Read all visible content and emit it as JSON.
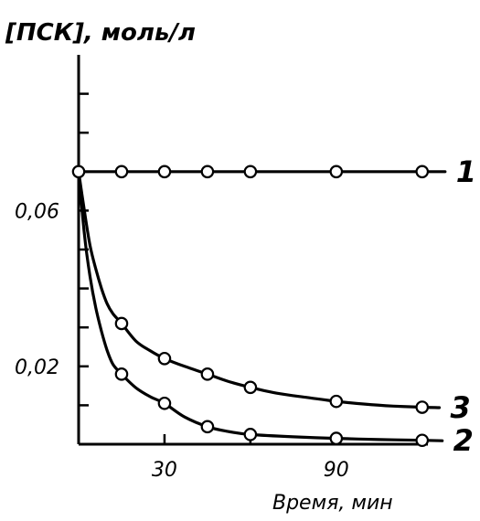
{
  "chart_data": {
    "type": "line",
    "ylabel": "[ПСК], моль/л",
    "xlabel": "Время, мин",
    "xlim": [
      0,
      122
    ],
    "ylim": [
      0,
      0.1
    ],
    "x_ticks": [
      {
        "value": 30,
        "label": "30"
      },
      {
        "value": 90,
        "label": "90"
      }
    ],
    "y_ticks": [
      {
        "value": 0.02,
        "label": "0,02"
      },
      {
        "value": 0.06,
        "label": "0,06"
      }
    ],
    "y_minor_ticks": [
      0.01,
      0.03,
      0.04,
      0.05,
      0.07,
      0.08,
      0.09
    ],
    "x_minor_ticks": [
      60,
      120
    ],
    "grid": false,
    "series": [
      {
        "name": "1",
        "label": "1",
        "x": [
          0,
          15,
          30,
          45,
          60,
          90,
          120
        ],
        "y": [
          0.07,
          0.07,
          0.07,
          0.07,
          0.07,
          0.07,
          0.07
        ],
        "curve": [
          [
            0,
            0.07
          ],
          [
            30,
            0.07
          ],
          [
            60,
            0.07
          ],
          [
            90,
            0.07
          ],
          [
            120,
            0.07
          ],
          [
            128,
            0.07
          ]
        ]
      },
      {
        "name": "3",
        "label": "3",
        "x": [
          15,
          30,
          45,
          60,
          90,
          120
        ],
        "y": [
          0.031,
          0.022,
          0.018,
          0.0146,
          0.011,
          0.0095
        ],
        "curve": [
          [
            0,
            0.07
          ],
          [
            2,
            0.06
          ],
          [
            4,
            0.051
          ],
          [
            6,
            0.045
          ],
          [
            8,
            0.04
          ],
          [
            10,
            0.036
          ],
          [
            12,
            0.0335
          ],
          [
            15,
            0.031
          ],
          [
            20,
            0.0265
          ],
          [
            25,
            0.024
          ],
          [
            30,
            0.022
          ],
          [
            37,
            0.02
          ],
          [
            45,
            0.018
          ],
          [
            52,
            0.0162
          ],
          [
            60,
            0.0146
          ],
          [
            70,
            0.013
          ],
          [
            80,
            0.012
          ],
          [
            90,
            0.011
          ],
          [
            100,
            0.0103
          ],
          [
            110,
            0.0098
          ],
          [
            120,
            0.0095
          ],
          [
            126,
            0.0094
          ]
        ]
      },
      {
        "name": "2",
        "label": "2",
        "x": [
          15,
          30,
          45,
          60,
          90,
          120
        ],
        "y": [
          0.018,
          0.0105,
          0.0045,
          0.0025,
          0.0015,
          0.001
        ],
        "curve": [
          [
            0,
            0.07
          ],
          [
            2,
            0.054
          ],
          [
            4,
            0.043
          ],
          [
            6,
            0.035
          ],
          [
            8,
            0.029
          ],
          [
            10,
            0.024
          ],
          [
            12,
            0.0205
          ],
          [
            15,
            0.018
          ],
          [
            20,
            0.0145
          ],
          [
            25,
            0.0122
          ],
          [
            30,
            0.0105
          ],
          [
            37,
            0.007
          ],
          [
            45,
            0.0045
          ],
          [
            52,
            0.0033
          ],
          [
            60,
            0.0025
          ],
          [
            75,
            0.0019
          ],
          [
            90,
            0.0015
          ],
          [
            105,
            0.0012
          ],
          [
            120,
            0.001
          ],
          [
            127,
            0.0009
          ]
        ]
      }
    ]
  }
}
